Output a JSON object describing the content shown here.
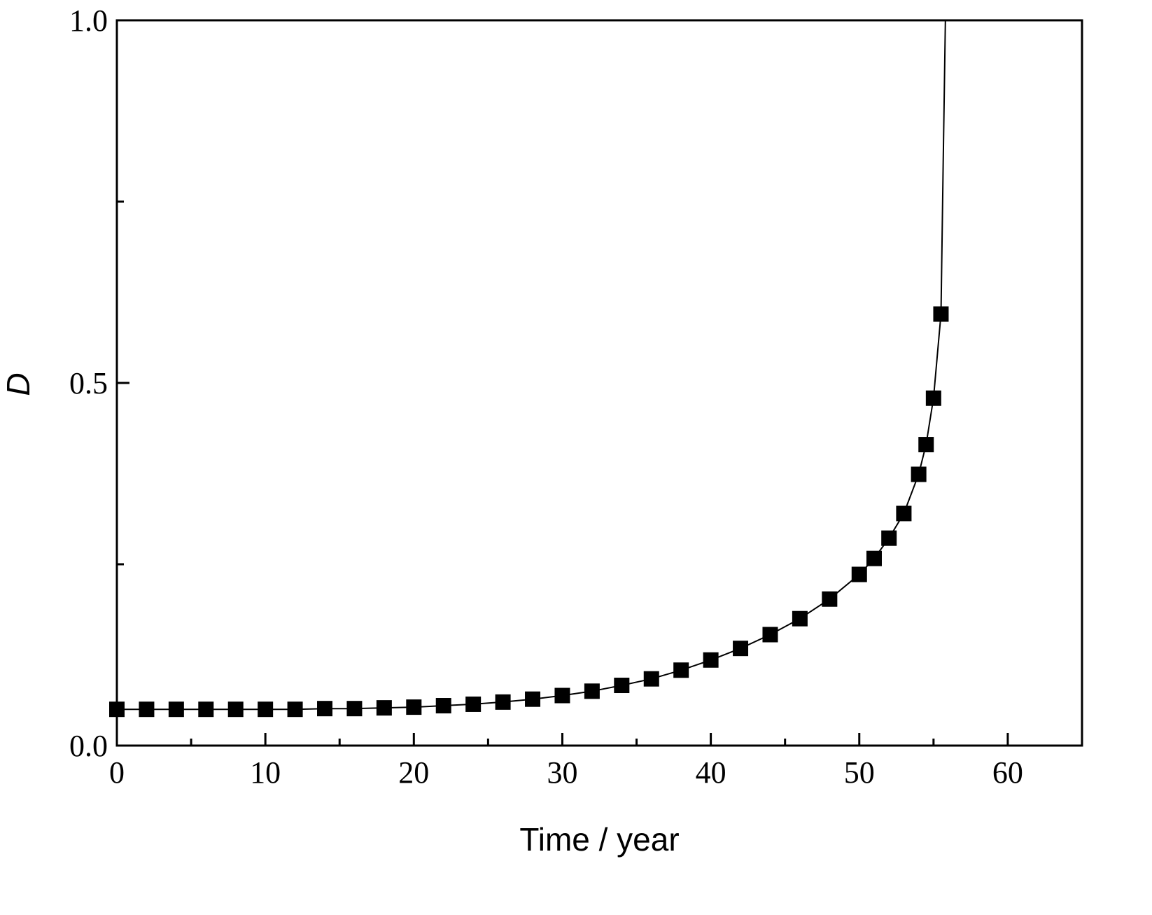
{
  "chart_data": {
    "type": "scatter",
    "xlabel": "Time / year",
    "ylabel": "D",
    "xlim": [
      0,
      65
    ],
    "ylim": [
      0,
      1.0
    ],
    "x_ticks": [
      0,
      10,
      20,
      30,
      40,
      50,
      60
    ],
    "x_tick_labels": [
      "0",
      "10",
      "20",
      "30",
      "40",
      "50",
      "60"
    ],
    "y_ticks": [
      0,
      0.5,
      1.0
    ],
    "y_tick_labels": [
      "0.0",
      "0.5",
      "1.0"
    ],
    "grid": false,
    "legend": "none",
    "colors": {
      "marker": "#000000",
      "line": "#000000",
      "axes": "#000000"
    },
    "series": [
      {
        "marker": "square",
        "x": [
          0,
          2,
          4,
          6,
          8,
          10,
          12,
          14,
          16,
          18,
          20,
          22,
          24,
          26,
          28,
          30,
          32,
          34,
          36,
          38,
          40,
          42,
          44,
          46,
          48,
          50,
          51,
          52,
          53,
          54,
          54.5,
          55,
          55.5
        ],
        "y": [
          0.05,
          0.05,
          0.05,
          0.05,
          0.05,
          0.05,
          0.05,
          0.051,
          0.051,
          0.052,
          0.053,
          0.055,
          0.057,
          0.06,
          0.064,
          0.069,
          0.075,
          0.083,
          0.092,
          0.104,
          0.118,
          0.134,
          0.153,
          0.175,
          0.202,
          0.236,
          0.258,
          0.286,
          0.32,
          0.374,
          0.415,
          0.479,
          0.595
        ]
      }
    ],
    "curve": {
      "x": [
        55.5,
        55.65,
        55.8
      ],
      "y": [
        0.595,
        0.8,
        1.0
      ]
    }
  }
}
